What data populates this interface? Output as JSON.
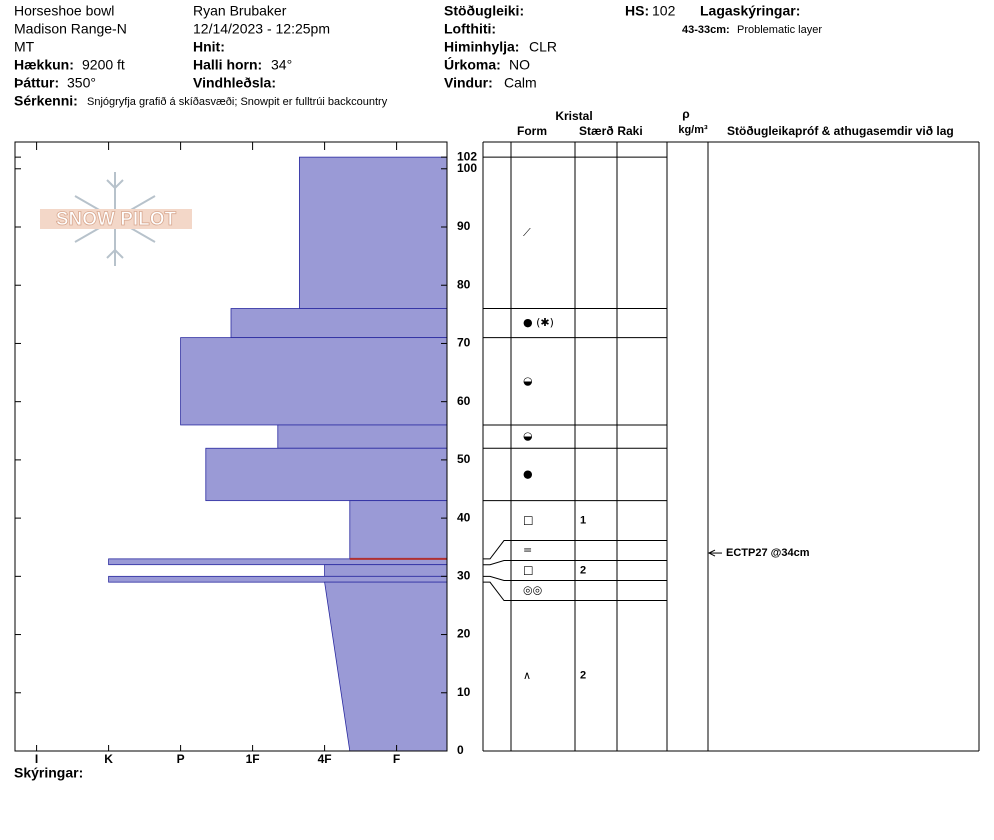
{
  "header": {
    "location": "Horseshoe bowl",
    "range": "Madison Range-N",
    "state": "MT",
    "elevation": {
      "label": "Hækkun:",
      "value": "9200 ft"
    },
    "aspect": {
      "label": "Þáttur:",
      "value": "350°"
    },
    "observer": "Ryan Brubaker",
    "datetime": "12/14/2023 - 12:25pm",
    "coords": {
      "label": "Hnit:"
    },
    "slope": {
      "label": "Halli horn:",
      "value": "34°"
    },
    "wind_loading": {
      "label": "Vindhleðsla:"
    },
    "stability": {
      "label": "Stöðugleiki:"
    },
    "air_temp": {
      "label": "Lofthiti:"
    },
    "sky": {
      "label": "Himinhylja:",
      "value": "CLR"
    },
    "precip": {
      "label": "Úrkoma:",
      "value": "NO"
    },
    "wind": {
      "label": "Vindur:",
      "value": "Calm"
    },
    "hs": {
      "label": "HS:",
      "value": 102
    },
    "layer_notes": {
      "label": "Lagaskýringar:",
      "items": [
        {
          "depth": "43-33cm:",
          "note": "Problematic layer"
        }
      ]
    },
    "features": {
      "label": "Sérkenni:",
      "value": "Snjógryfja grafið á skíðasvæði;  Snowpit er fulltrúi backcountry"
    }
  },
  "logo": "SNOW PILOT",
  "chart_data": {
    "type": "snow-profile",
    "color": "#9a9ad6",
    "edge_color": "#2a2aa0",
    "ylim": [
      0,
      104.6
    ],
    "yticks": [
      0,
      10,
      20,
      30,
      40,
      50,
      60,
      70,
      80,
      90,
      100,
      102
    ],
    "xlim": [
      6.3,
      0.3
    ],
    "xticks": [
      {
        "value": 6,
        "label": "I"
      },
      {
        "value": 5,
        "label": "K"
      },
      {
        "value": 4,
        "label": "P"
      },
      {
        "value": 3,
        "label": "1F"
      },
      {
        "value": 2,
        "label": "4F"
      },
      {
        "value": 1,
        "label": "F"
      }
    ],
    "layers": [
      {
        "top": 102,
        "bottom": 76,
        "hardness": 2.35,
        "form": "⟋"
      },
      {
        "top": 76,
        "bottom": 71,
        "hardness": 3.3,
        "form": "● (✱)"
      },
      {
        "top": 71,
        "bottom": 56,
        "hardness": 4,
        "form": "◒"
      },
      {
        "top": 56,
        "bottom": 52,
        "hardness": 2.65,
        "form": "◒"
      },
      {
        "top": 52,
        "bottom": 43,
        "hardness": 3.65,
        "form": "●"
      },
      {
        "top": 43,
        "bottom": 33,
        "hardness": 1.65,
        "form": "□",
        "size": 1
      },
      {
        "top": 33,
        "bottom": 32,
        "hardness": 5,
        "form": "="
      },
      {
        "top": 32,
        "bottom": 30,
        "hardness": 2,
        "form": "□",
        "size": 2
      },
      {
        "top": 30,
        "bottom": 29,
        "hardness": 5,
        "form": "◎◎"
      },
      {
        "top": 29,
        "bottom": 0,
        "hardness": 2,
        "hardness_bottom": 1.65,
        "form": "∧",
        "size": 2
      }
    ],
    "problem_layer": {
      "top": 43,
      "bottom": 33,
      "color": "#b03030"
    },
    "table_headers": {
      "crystal": "Kristal",
      "form": "Form",
      "size": "Stærð",
      "moisture": "Raki",
      "rho": "ρ",
      "rho_unit": "kg/m³",
      "tests": "Stöðugleikapróf & athugasemdir við lag"
    },
    "tests": [
      {
        "depth": 34,
        "label": "ECTP27 @34cm"
      }
    ]
  },
  "footer": {
    "label": "Skýringar:"
  }
}
